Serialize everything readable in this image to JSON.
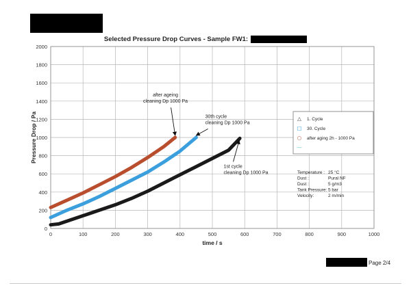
{
  "page": {
    "page_number": "Page 2/4"
  },
  "chart_data": {
    "type": "line",
    "title": "Selected Pressure Drop Curves - Sample FW1:",
    "xlabel": "time / s",
    "ylabel": "Pressure Drop / Pa",
    "xlim": [
      0,
      1000
    ],
    "ylim": [
      0,
      2000
    ],
    "x_ticks": [
      "0",
      "100",
      "200",
      "300",
      "400",
      "500",
      "600",
      "700",
      "800",
      "900",
      "1000"
    ],
    "y_ticks": [
      "0",
      "200",
      "400",
      "600",
      "800",
      "1000",
      "1200",
      "1400",
      "1600",
      "1800",
      "2000"
    ],
    "grid": true,
    "legend_position": "right",
    "legend": [
      {
        "marker": "△",
        "label": "1. Cycle",
        "color": "#333333"
      },
      {
        "marker": "□",
        "label": "30. Cycle",
        "color": "#2e9bd6"
      },
      {
        "marker": "○",
        "label": "after aging 2h - 1000 Pa",
        "color": "#b0402a"
      },
      {
        "marker": "—",
        "label": "",
        "color": "#4fc3c3"
      }
    ],
    "series": [
      {
        "color": "#1a1a1a",
        "x": [
          0,
          25,
          50,
          100,
          150,
          200,
          250,
          300,
          350,
          400,
          450,
          500,
          550,
          585
        ],
        "y": [
          40,
          50,
          80,
          140,
          200,
          260,
          330,
          410,
          500,
          590,
          680,
          770,
          860,
          990
        ]
      },
      {
        "color": "#3a9fdc",
        "x": [
          0,
          50,
          100,
          150,
          200,
          250,
          300,
          350,
          400,
          450
        ],
        "y": [
          120,
          200,
          270,
          350,
          440,
          530,
          620,
          730,
          850,
          1000
        ]
      },
      {
        "color": "#b84e2e",
        "x": [
          0,
          50,
          100,
          150,
          200,
          250,
          300,
          350,
          385
        ],
        "y": [
          230,
          310,
          390,
          480,
          570,
          670,
          780,
          900,
          1000
        ]
      }
    ],
    "annotations": [
      {
        "lines": [
          "after ageing",
          "cleaning Dp 1000 Pa"
        ],
        "align": "middle",
        "text_x": 355,
        "text_y": 1450,
        "arrow_to": [
          385,
          1000
        ]
      },
      {
        "lines": [
          "30th cycle",
          "cleaning Dp 1000 Pa"
        ],
        "align": "start",
        "text_x": 478,
        "text_y": 1215,
        "arrow_to": [
          450,
          1000
        ]
      },
      {
        "lines": [
          "1st cycle",
          "cleaning Dp 1000 Pa"
        ],
        "align": "start",
        "text_x": 535,
        "text_y": 665,
        "arrow_to": [
          583,
          990
        ]
      }
    ],
    "info_box": [
      {
        "label": "Temperature :",
        "value": "25 °C"
      },
      {
        "label": "Dust :",
        "value": "Pural NF"
      },
      {
        "label": "Dust :",
        "value": "5 g/m3"
      },
      {
        "label": "Tank Pressure:",
        "value": "5 bar"
      },
      {
        "label": "Velocity:",
        "value": "2 m/min"
      }
    ]
  }
}
